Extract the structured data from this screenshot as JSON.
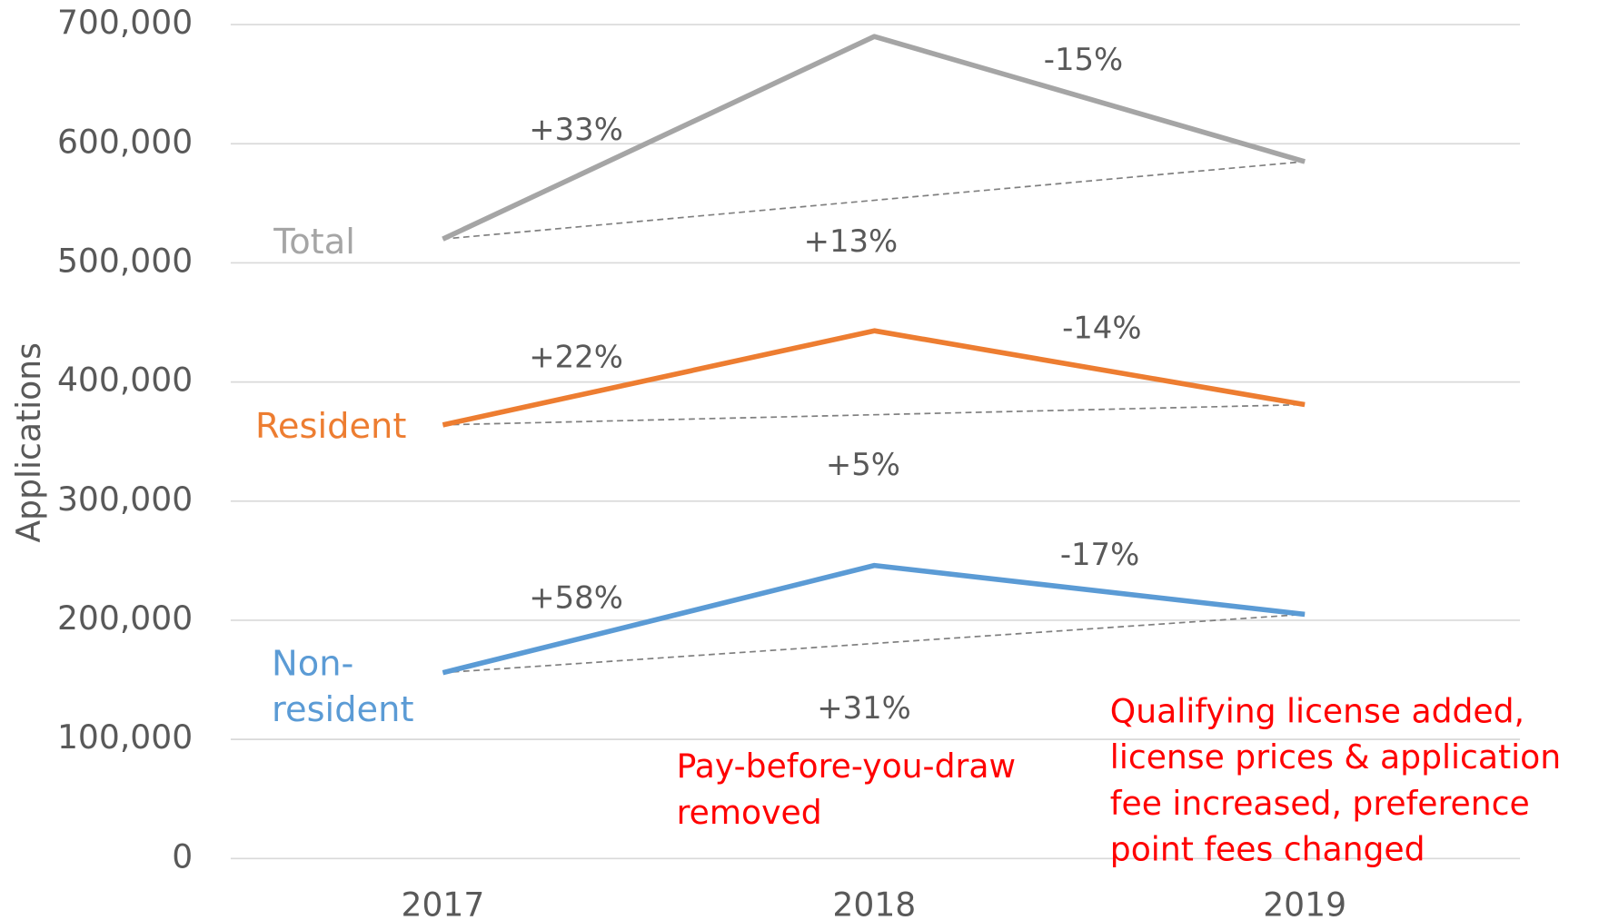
{
  "chart_data": {
    "type": "line",
    "y_label": "Applications",
    "categories": [
      "2017",
      "2018",
      "2019"
    ],
    "series": [
      {
        "name": "Total",
        "color": "#a5a5a5",
        "values": [
          520000,
          690000,
          585000
        ]
      },
      {
        "name": "Resident",
        "color": "#ed7d31",
        "values": [
          364000,
          443000,
          381000
        ]
      },
      {
        "name": "Non-resident",
        "color": "#5b9bd5",
        "values": [
          156000,
          246000,
          205000
        ]
      }
    ],
    "ylim": [
      0,
      700000
    ],
    "yticks": [
      0,
      {
        "value": 100000,
        "label": "100,000"
      },
      {
        "value": 200000,
        "label": "200,000"
      },
      {
        "value": 300000,
        "label": "300,000"
      },
      {
        "value": 400000,
        "label": "400,000"
      },
      {
        "value": 500000,
        "label": "500,000"
      },
      {
        "value": 600000,
        "label": "600,000"
      },
      {
        "value": 700000,
        "label": "700,000"
      }
    ],
    "grid": true,
    "annotations": [
      "+33%",
      "-15%",
      "+13%",
      "+22%",
      "-14%",
      "+5%",
      "+58%",
      "-17%",
      "+31%"
    ],
    "notes": [
      "Pay-before-you-draw removed",
      "Qualifying license added, license prices & application fee increased, preference point fees changed"
    ],
    "note_color": "#ff0000"
  }
}
